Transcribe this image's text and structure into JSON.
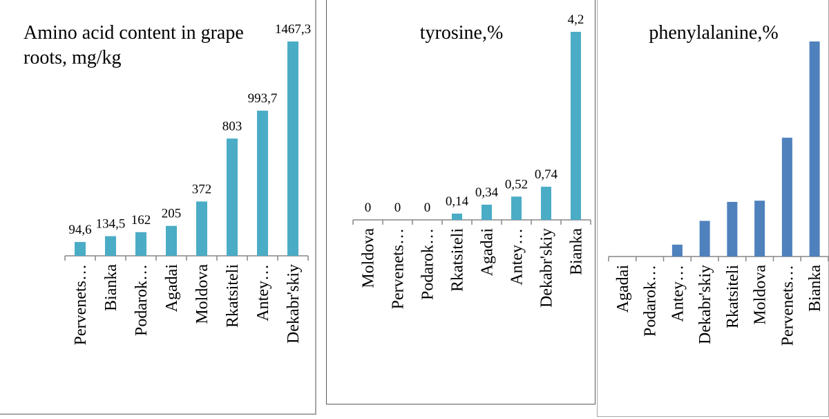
{
  "colors": {
    "teal": "#4bacc6",
    "blue": "#4f81bd",
    "axis": "#868686"
  },
  "chart_data": [
    {
      "type": "bar",
      "title": "Amino acid content in grape roots, mg/kg",
      "categories": [
        "Pervenets…",
        "Bianka",
        "Podarok…",
        "Agadai",
        "Moldova",
        "Rkatsiteli",
        "Antey…",
        "Dekabr'skiy"
      ],
      "values": [
        94.6,
        134.5,
        162,
        205,
        372,
        803,
        993.7,
        1467.3
      ],
      "data_labels": [
        "94,6",
        "134,5",
        "162",
        "205",
        "372",
        "803",
        "993,7",
        "1467,3"
      ],
      "ylim": [
        0,
        1500
      ],
      "grid": false,
      "legend": "none"
    },
    {
      "type": "bar",
      "title": "tyrosine,%",
      "categories": [
        "Moldova",
        "Pervenets…",
        "Podarok…",
        "Rkatsiteli",
        "Agadai",
        "Antey…",
        "Dekabr'skiy",
        "Bianka"
      ],
      "values": [
        0,
        0,
        0,
        0.14,
        0.34,
        0.52,
        0.74,
        4.2
      ],
      "data_labels": [
        "0",
        "0",
        "0",
        "0,14",
        "0,34",
        "0,52",
        "0,74",
        "4,2"
      ],
      "ylim": [
        0,
        4.3
      ],
      "grid": false,
      "legend": "none"
    },
    {
      "type": "bar",
      "title": "phenylalanine,%",
      "categories": [
        "Agadai",
        "Podarok…",
        "Antey…",
        "Dekabr'skiy",
        "Rkatsiteli",
        "Moldova",
        "Pervenets…",
        "Bianka"
      ],
      "values": [
        0,
        0,
        0.5,
        1.5,
        2.3,
        2.35,
        5.0,
        9.05
      ],
      "ylim": [
        0,
        9.2
      ],
      "grid": false,
      "legend": "none"
    }
  ]
}
